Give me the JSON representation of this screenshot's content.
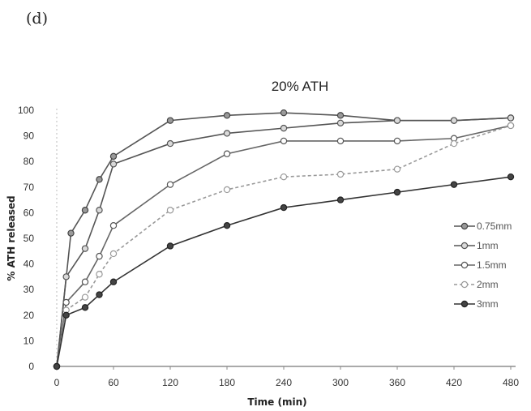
{
  "panel_label": "(d)",
  "chart_data": {
    "type": "line",
    "title": "20% ATH",
    "xlabel": "Time (min)",
    "ylabel": "% ATH released",
    "xlim": [
      0,
      480
    ],
    "ylim": [
      0,
      100
    ],
    "xticks": [
      0,
      60,
      120,
      180,
      240,
      300,
      360,
      420,
      480
    ],
    "yticks": [
      0,
      10,
      20,
      30,
      40,
      50,
      60,
      70,
      80,
      90,
      100
    ],
    "grid": false,
    "legend_position": "right",
    "series": [
      {
        "name": "0.75mm",
        "color": "#555555",
        "marker": "circle-gray",
        "dash": "",
        "x": [
          0,
          15,
          30,
          45,
          60,
          120,
          180,
          240,
          300,
          360,
          420,
          480
        ],
        "y": [
          0,
          52,
          61,
          73,
          82,
          96,
          98,
          99,
          98,
          96,
          96,
          97
        ]
      },
      {
        "name": "1mm",
        "color": "#555555",
        "marker": "circle-light",
        "dash": "",
        "x": [
          0,
          10,
          30,
          45,
          60,
          120,
          180,
          240,
          300,
          360,
          420,
          480
        ],
        "y": [
          0,
          35,
          46,
          61,
          79,
          87,
          91,
          93,
          95,
          96,
          96,
          97
        ]
      },
      {
        "name": "1.5mm",
        "color": "#666666",
        "marker": "circle-open",
        "dash": "",
        "x": [
          0,
          10,
          30,
          45,
          60,
          120,
          180,
          240,
          300,
          360,
          420,
          480
        ],
        "y": [
          0,
          25,
          33,
          43,
          55,
          71,
          83,
          88,
          88,
          88,
          89,
          94
        ]
      },
      {
        "name": "2mm",
        "color": "#999999",
        "marker": "circle-open-light",
        "dash": "4,3",
        "x": [
          0,
          10,
          30,
          45,
          60,
          120,
          180,
          240,
          300,
          360,
          420,
          480
        ],
        "y": [
          0,
          22,
          27,
          36,
          44,
          61,
          69,
          74,
          75,
          77,
          87,
          94
        ]
      },
      {
        "name": "3mm",
        "color": "#333333",
        "marker": "circle-dark",
        "dash": "",
        "x": [
          0,
          10,
          30,
          45,
          60,
          120,
          180,
          240,
          300,
          360,
          420,
          480
        ],
        "y": [
          0,
          20,
          23,
          28,
          33,
          47,
          55,
          62,
          65,
          68,
          71,
          74
        ]
      }
    ]
  }
}
